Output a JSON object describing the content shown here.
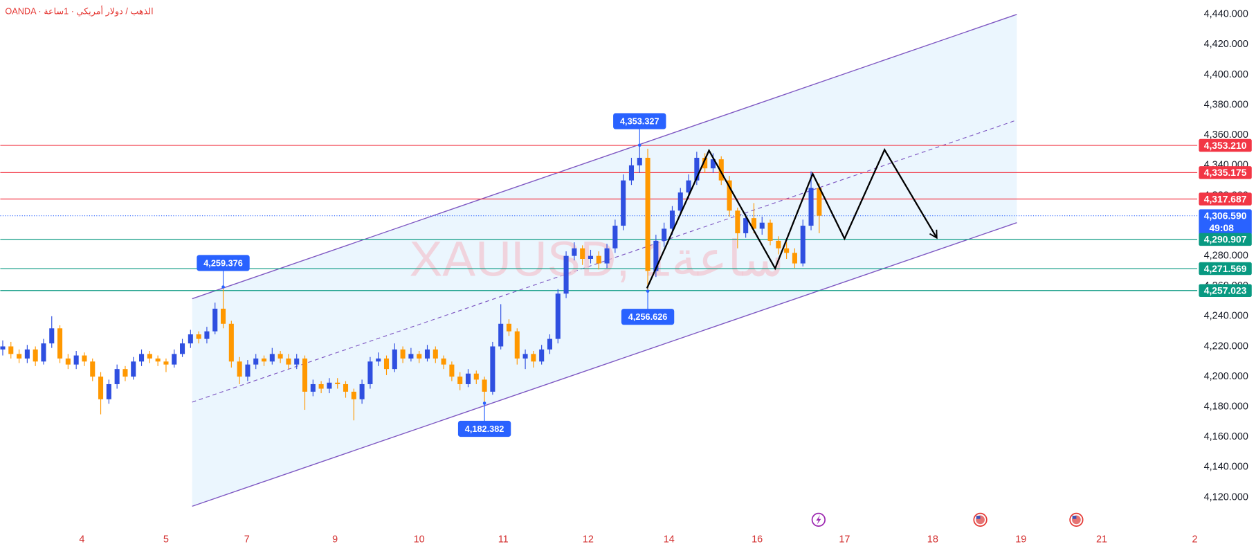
{
  "chart_data": {
    "type": "candlestick",
    "title": "OANDA · الذهب / دولار أمريكي · 1ساعة",
    "watermark": "XAUUSD, 1ساعة",
    "countdown": "49:08",
    "grid": false,
    "up_color": "#2f4fe0",
    "down_color": "#ff9800",
    "ylim": [
      4120,
      4440
    ],
    "yticks": [
      {
        "value": 4120,
        "label": "4,120.000"
      },
      {
        "value": 4140,
        "label": "4,140.000"
      },
      {
        "value": 4160,
        "label": "4,160.000"
      },
      {
        "value": 4180,
        "label": "4,180.000"
      },
      {
        "value": 4200,
        "label": "4,200.000"
      },
      {
        "value": 4220,
        "label": "4,220.000"
      },
      {
        "value": 4240,
        "label": "4,240.000"
      },
      {
        "value": 4260,
        "label": "4,260.000"
      },
      {
        "value": 4280,
        "label": "4,280.000"
      },
      {
        "value": 4300,
        "label": "4,300.000"
      },
      {
        "value": 4320,
        "label": "4,320.000"
      },
      {
        "value": 4340,
        "label": "4,340.000"
      },
      {
        "value": 4360,
        "label": "4,360.000"
      },
      {
        "value": 4380,
        "label": "4,380.000"
      },
      {
        "value": 4400,
        "label": "4,400.000"
      },
      {
        "value": 4420,
        "label": "4,420.000"
      },
      {
        "value": 4440,
        "label": "4,440.000"
      }
    ],
    "xlim": [
      -0.3,
      146.3
    ],
    "xticks": [
      {
        "value": 9.7,
        "label": "4"
      },
      {
        "value": 20.0,
        "label": "5"
      },
      {
        "value": 29.9,
        "label": "7"
      },
      {
        "value": 40.7,
        "label": "9"
      },
      {
        "value": 51.0,
        "label": "10"
      },
      {
        "value": 61.3,
        "label": "11"
      },
      {
        "value": 71.7,
        "label": "12"
      },
      {
        "value": 81.6,
        "label": "14"
      },
      {
        "value": 92.4,
        "label": "16"
      },
      {
        "value": 103.1,
        "label": "17"
      },
      {
        "value": 113.9,
        "label": "18"
      },
      {
        "value": 124.7,
        "label": "19"
      },
      {
        "value": 134.6,
        "label": "21"
      },
      {
        "value": 146.0,
        "label": "2"
      }
    ],
    "candles": [
      [
        4218,
        4224,
        4214,
        4220
      ],
      [
        4220,
        4223,
        4212,
        4215
      ],
      [
        4215,
        4218,
        4209,
        4212
      ],
      [
        4212,
        4221,
        4209,
        4218
      ],
      [
        4218,
        4220,
        4207,
        4210
      ],
      [
        4210,
        4225,
        4208,
        4222
      ],
      [
        4222,
        4240,
        4219,
        4232
      ],
      [
        4232,
        4234,
        4209,
        4212
      ],
      [
        4212,
        4215,
        4205,
        4208
      ],
      [
        4208,
        4217,
        4205,
        4214
      ],
      [
        4214,
        4216,
        4207,
        4210
      ],
      [
        4210,
        4212,
        4197,
        4200
      ],
      [
        4200,
        4203,
        4175,
        4185
      ],
      [
        4185,
        4198,
        4182,
        4195
      ],
      [
        4195,
        4208,
        4192,
        4205
      ],
      [
        4205,
        4207,
        4197,
        4200
      ],
      [
        4200,
        4213,
        4198,
        4210
      ],
      [
        4210,
        4218,
        4207,
        4215
      ],
      [
        4215,
        4217,
        4209,
        4212
      ],
      [
        4212,
        4214,
        4207,
        4210
      ],
      [
        4210,
        4212,
        4203,
        4208
      ],
      [
        4208,
        4218,
        4206,
        4215
      ],
      [
        4215,
        4225,
        4213,
        4222
      ],
      [
        4222,
        4231,
        4219,
        4228
      ],
      [
        4228,
        4230,
        4222,
        4225
      ],
      [
        4225,
        4233,
        4222,
        4230
      ],
      [
        4230,
        4249,
        4228,
        4245
      ],
      [
        4245,
        4259.376,
        4232,
        4235
      ],
      [
        4235,
        4237,
        4206,
        4210
      ],
      [
        4210,
        4213,
        4195,
        4200
      ],
      [
        4200,
        4211,
        4197,
        4208
      ],
      [
        4208,
        4215,
        4205,
        4212
      ],
      [
        4212,
        4214,
        4207,
        4210
      ],
      [
        4210,
        4219,
        4208,
        4215
      ],
      [
        4215,
        4217,
        4209,
        4212
      ],
      [
        4212,
        4215,
        4205,
        4208
      ],
      [
        4208,
        4215,
        4205,
        4212
      ],
      [
        4212,
        4214,
        4178,
        4190
      ],
      [
        4190,
        4198,
        4187,
        4195
      ],
      [
        4195,
        4197,
        4189,
        4192
      ],
      [
        4192,
        4199,
        4189,
        4196
      ],
      [
        4196,
        4199,
        4192,
        4195
      ],
      [
        4195,
        4197,
        4186,
        4190
      ],
      [
        4190,
        4192,
        4171,
        4185
      ],
      [
        4185,
        4198,
        4182,
        4195
      ],
      [
        4195,
        4213,
        4192,
        4210
      ],
      [
        4210,
        4216,
        4207,
        4212
      ],
      [
        4212,
        4214,
        4201,
        4205
      ],
      [
        4205,
        4222,
        4203,
        4218
      ],
      [
        4218,
        4220,
        4209,
        4212
      ],
      [
        4212,
        4219,
        4210,
        4215
      ],
      [
        4215,
        4217,
        4209,
        4212
      ],
      [
        4212,
        4221,
        4210,
        4218
      ],
      [
        4218,
        4220,
        4209,
        4212
      ],
      [
        4212,
        4214,
        4205,
        4208
      ],
      [
        4208,
        4210,
        4197,
        4200
      ],
      [
        4200,
        4203,
        4191,
        4195
      ],
      [
        4195,
        4205,
        4193,
        4202
      ],
      [
        4202,
        4204,
        4195,
        4198
      ],
      [
        4198,
        4200,
        4182.382,
        4190
      ],
      [
        4190,
        4223,
        4188,
        4220
      ],
      [
        4220,
        4248,
        4218,
        4235
      ],
      [
        4235,
        4238,
        4227,
        4230
      ],
      [
        4230,
        4232,
        4208,
        4212
      ],
      [
        4212,
        4218,
        4205,
        4215
      ],
      [
        4215,
        4217,
        4206,
        4210
      ],
      [
        4210,
        4221,
        4208,
        4218
      ],
      [
        4218,
        4228,
        4215,
        4225
      ],
      [
        4225,
        4258,
        4222,
        4255
      ],
      [
        4255,
        4283,
        4252,
        4280
      ],
      [
        4280,
        4289,
        4277,
        4285
      ],
      [
        4285,
        4287,
        4274,
        4278
      ],
      [
        4278,
        4284,
        4275,
        4280
      ],
      [
        4280,
        4283,
        4271,
        4275
      ],
      [
        4275,
        4288,
        4272,
        4285
      ],
      [
        4285,
        4304,
        4282,
        4300
      ],
      [
        4300,
        4334,
        4297,
        4330
      ],
      [
        4330,
        4345,
        4327,
        4340
      ],
      [
        4340,
        4353.327,
        4335,
        4345
      ],
      [
        4345,
        4351,
        4256.626,
        4270
      ],
      [
        4270,
        4294,
        4266,
        4290
      ],
      [
        4290,
        4302,
        4286,
        4298
      ],
      [
        4298,
        4313,
        4294,
        4310
      ],
      [
        4310,
        4325,
        4307,
        4322
      ],
      [
        4322,
        4334,
        4318,
        4330
      ],
      [
        4330,
        4349,
        4327,
        4345
      ],
      [
        4345,
        4348,
        4335,
        4338
      ],
      [
        4338,
        4348,
        4335,
        4344
      ],
      [
        4344,
        4346,
        4327,
        4330
      ],
      [
        4330,
        4333,
        4306,
        4310
      ],
      [
        4310,
        4312,
        4285,
        4295
      ],
      [
        4295,
        4308,
        4292,
        4305
      ],
      [
        4305,
        4315,
        4295,
        4298
      ],
      [
        4298,
        4306,
        4294,
        4302
      ],
      [
        4302,
        4304,
        4287,
        4290
      ],
      [
        4290,
        4293,
        4281,
        4285
      ],
      [
        4285,
        4289,
        4278,
        4282
      ],
      [
        4282,
        4285,
        4272,
        4275
      ],
      [
        4275,
        4304,
        4273,
        4300
      ],
      [
        4300,
        4336,
        4297,
        4325
      ],
      [
        4325,
        4328,
        4295,
        4306.59
      ]
    ],
    "levels": [
      {
        "value": 4353.21,
        "label": "4,353.210",
        "color": "#f23645",
        "style": "solid"
      },
      {
        "value": 4335.175,
        "label": "4,335.175",
        "color": "#f23645",
        "style": "solid"
      },
      {
        "value": 4317.687,
        "label": "4,317.687",
        "color": "#f23645",
        "style": "solid"
      },
      {
        "value": 4306.59,
        "label": "4,306.590",
        "color": "#2962ff",
        "style": "dotted"
      },
      {
        "value": 4290.907,
        "label": "4,290.907",
        "color": "#089981",
        "style": "solid"
      },
      {
        "value": 4271.569,
        "label": "4,271.569",
        "color": "#089981",
        "style": "solid"
      },
      {
        "value": 4257.023,
        "label": "4,257.023",
        "color": "#089981",
        "style": "solid"
      }
    ],
    "annotations": [
      {
        "index": 78,
        "value": 4353.327,
        "label": "4,353.327",
        "side": "above"
      },
      {
        "index": 27,
        "value": 4259.376,
        "label": "4,259.376",
        "side": "above"
      },
      {
        "index": 79,
        "value": 4256.626,
        "label": "4,256.626",
        "side": "below"
      },
      {
        "index": 59,
        "value": 4182.382,
        "label": "4,182.382",
        "side": "below"
      }
    ],
    "channel": {
      "color": "#7e57c2",
      "upper": {
        "x": [
          23.2,
          124.2
        ],
        "y": [
          4251.6,
          4440
        ]
      },
      "lower": {
        "x": [
          23.2,
          124.2
        ],
        "y": [
          4114.1,
          4302
        ]
      },
      "middle": {
        "x": [
          23.2,
          124.2
        ],
        "y": [
          4183.1,
          4370
        ]
      }
    },
    "projection": {
      "color": "#000000",
      "x": [
        78.9,
        86.5,
        94.6,
        99.2,
        103.1,
        108.0,
        114.4
      ],
      "y": [
        4258.5,
        4349.8,
        4271.7,
        4334.4,
        4291.4,
        4350.3,
        4291.9
      ]
    }
  }
}
